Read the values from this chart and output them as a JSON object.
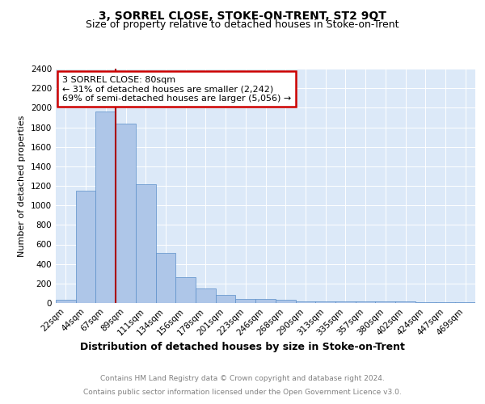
{
  "title": "3, SORREL CLOSE, STOKE-ON-TRENT, ST2 9QT",
  "subtitle": "Size of property relative to detached houses in Stoke-on-Trent",
  "xlabel": "Distribution of detached houses by size in Stoke-on-Trent",
  "ylabel": "Number of detached properties",
  "categories": [
    "22sqm",
    "44sqm",
    "67sqm",
    "89sqm",
    "111sqm",
    "134sqm",
    "156sqm",
    "178sqm",
    "201sqm",
    "223sqm",
    "246sqm",
    "268sqm",
    "290sqm",
    "313sqm",
    "335sqm",
    "357sqm",
    "380sqm",
    "402sqm",
    "424sqm",
    "447sqm",
    "469sqm"
  ],
  "values": [
    30,
    1150,
    1960,
    1840,
    1220,
    515,
    265,
    148,
    82,
    45,
    40,
    35,
    20,
    20,
    18,
    15,
    13,
    20,
    12,
    10,
    8
  ],
  "bar_color": "#aec6e8",
  "bar_edge_color": "#5b8fc9",
  "background_color": "#dce9f8",
  "vline_x_index": 2,
  "vline_color": "#aa0000",
  "annotation_text": "3 SORREL CLOSE: 80sqm\n← 31% of detached houses are smaller (2,242)\n69% of semi-detached houses are larger (5,056) →",
  "annotation_box_color": "white",
  "annotation_box_edge": "#cc0000",
  "ylim": [
    0,
    2400
  ],
  "yticks": [
    0,
    200,
    400,
    600,
    800,
    1000,
    1200,
    1400,
    1600,
    1800,
    2000,
    2200,
    2400
  ],
  "footer_line1": "Contains HM Land Registry data © Crown copyright and database right 2024.",
  "footer_line2": "Contains public sector information licensed under the Open Government Licence v3.0.",
  "title_fontsize": 10,
  "subtitle_fontsize": 9,
  "xlabel_fontsize": 9,
  "ylabel_fontsize": 8,
  "tick_fontsize": 7.5,
  "annotation_fontsize": 8,
  "footer_fontsize": 6.5
}
